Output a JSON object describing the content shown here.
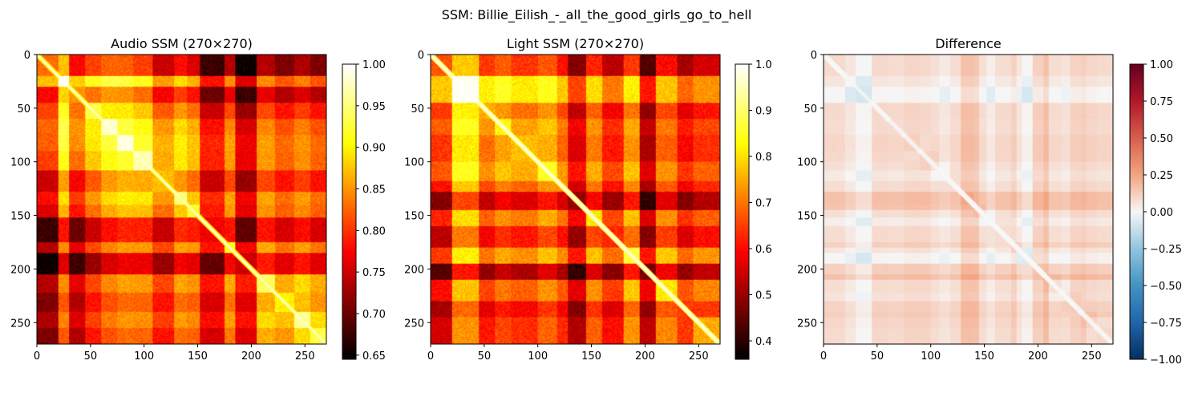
{
  "figure": {
    "suptitle": "SSM: Billie_Eilish_-_all_the_good_girls_go_to_hell"
  },
  "chart_data": [
    {
      "type": "heatmap",
      "title": "Audio SSM (270×270)",
      "matrix_size": 270,
      "colormap": "hot",
      "xticks": [
        0,
        50,
        100,
        150,
        200,
        250
      ],
      "yticks": [
        0,
        50,
        100,
        150,
        200,
        250
      ],
      "xlim": [
        0,
        270
      ],
      "ylim": [
        270,
        0
      ],
      "colorbar": {
        "range": [
          0.645,
          1.0
        ],
        "ticks": [
          "0.65",
          "0.70",
          "0.75",
          "0.80",
          "0.85",
          "0.90",
          "0.95",
          "1.00"
        ],
        "tick_values": [
          0.65,
          0.7,
          0.75,
          0.8,
          0.85,
          0.9,
          0.95,
          1.0
        ]
      },
      "section_boundaries": [
        0,
        20,
        30,
        45,
        60,
        75,
        90,
        108,
        128,
        140,
        152,
        175,
        185,
        205,
        222,
        240,
        255,
        270
      ],
      "section_level": [
        0.78,
        0.98,
        0.8,
        0.88,
        0.93,
        0.94,
        0.92,
        0.82,
        0.9,
        0.87,
        0.72,
        0.86,
        0.7,
        0.89,
        0.85,
        0.91,
        0.88
      ],
      "grid": false
    },
    {
      "type": "heatmap",
      "title": "Light SSM (270×270)",
      "matrix_size": 270,
      "colormap": "hot",
      "xticks": [
        0,
        50,
        100,
        150,
        200,
        250
      ],
      "yticks": [
        0,
        50,
        100,
        150,
        200,
        250
      ],
      "xlim": [
        0,
        270
      ],
      "ylim": [
        270,
        0
      ],
      "colorbar": {
        "range": [
          0.36,
          1.0
        ],
        "ticks": [
          "0.4",
          "0.5",
          "0.6",
          "0.7",
          "0.8",
          "0.9",
          "1.0"
        ],
        "tick_values": [
          0.4,
          0.5,
          0.6,
          0.7,
          0.8,
          0.9,
          1.0
        ]
      },
      "section_boundaries": [
        0,
        20,
        45,
        60,
        75,
        100,
        118,
        128,
        145,
        160,
        180,
        195,
        210,
        230,
        245,
        270
      ],
      "section_level": [
        0.62,
        0.95,
        0.7,
        0.78,
        0.72,
        0.8,
        0.68,
        0.45,
        0.75,
        0.58,
        0.82,
        0.42,
        0.76,
        0.6,
        0.7
      ],
      "grid": false
    },
    {
      "type": "heatmap",
      "title": "Difference",
      "matrix_size": 270,
      "colormap": "RdBu_r",
      "xticks": [
        0,
        50,
        100,
        150,
        200,
        250
      ],
      "yticks": [
        0,
        50,
        100,
        150,
        200,
        250
      ],
      "xlim": [
        0,
        270
      ],
      "ylim": [
        270,
        0
      ],
      "colorbar": {
        "range": [
          -1.0,
          1.0
        ],
        "ticks": [
          "1.00",
          "0.75",
          "0.50",
          "0.25",
          "0.00",
          "−0.25",
          "−0.50",
          "−0.75",
          "−1.00"
        ],
        "tick_values": [
          1.0,
          0.75,
          0.5,
          0.25,
          0.0,
          -0.25,
          -0.5,
          -0.75,
          -1.0
        ]
      },
      "value_range_shown": [
        -0.3,
        0.45
      ],
      "grid": false
    }
  ]
}
